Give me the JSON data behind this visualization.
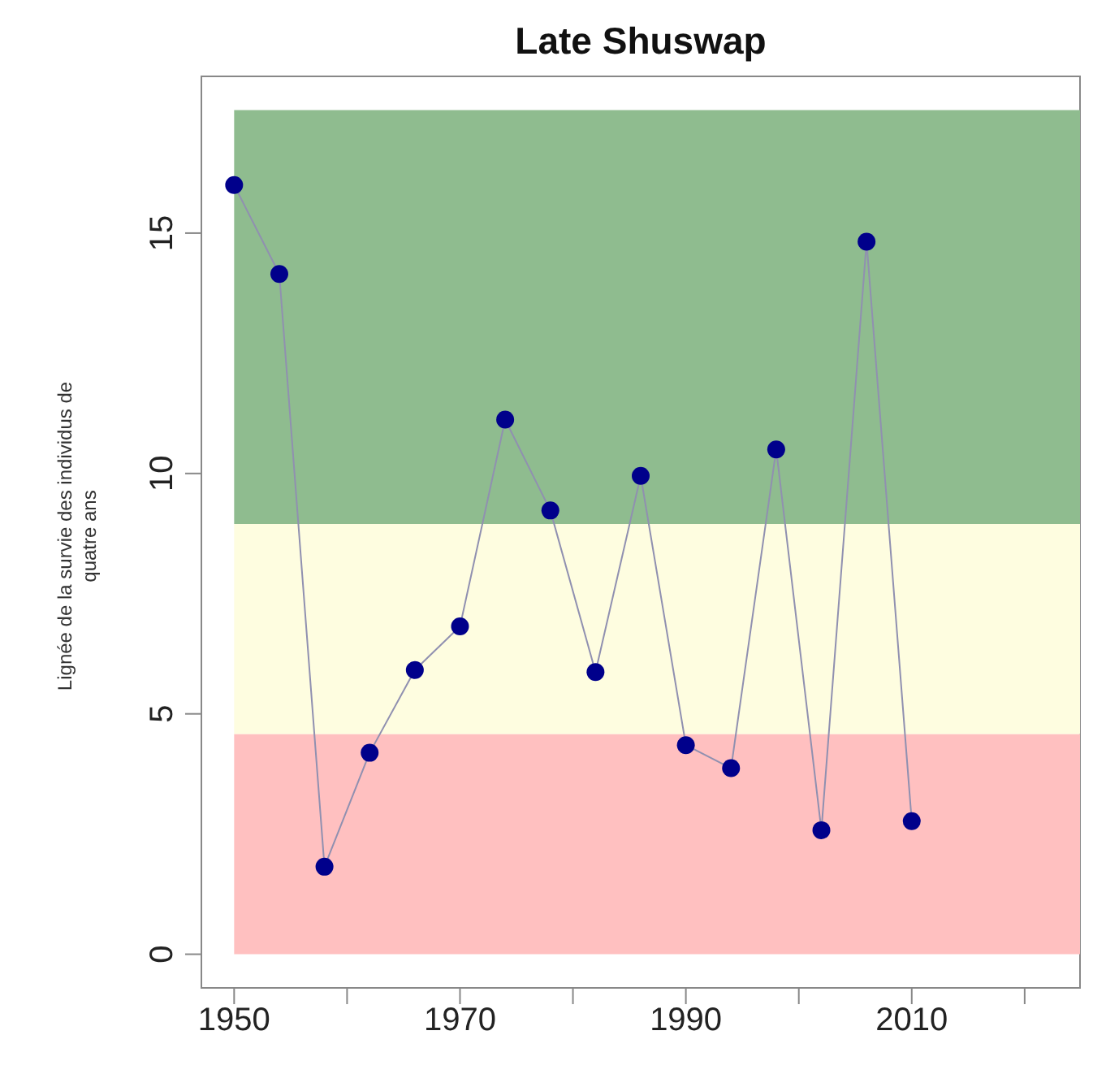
{
  "chart_data": {
    "type": "line",
    "title": "Late Shuswap",
    "ylabel": "Lignée de la survie des individus de quatre ans",
    "x": [
      1950,
      1954,
      1958,
      1962,
      1966,
      1970,
      1974,
      1978,
      1982,
      1986,
      1990,
      1994,
      1998,
      2002,
      2006,
      2010
    ],
    "series": [
      {
        "color": "#00008b",
        "values": [
          16.0,
          14.15,
          1.82,
          4.19,
          5.91,
          6.82,
          11.12,
          9.23,
          5.87,
          9.95,
          4.35,
          3.87,
          10.5,
          2.58,
          14.82,
          2.77
        ]
      }
    ],
    "xlim": [
      1947.1,
      2024.9
    ],
    "ylim": [
      -0.7,
      18.26
    ],
    "xticks": [
      1950,
      {
        "value": 1960,
        "label": null
      },
      1970,
      {
        "value": 1980,
        "label": null
      },
      1990,
      {
        "value": 2000,
        "label": null
      },
      2010,
      {
        "value": 2020,
        "label": null
      }
    ],
    "yticks": [
      0,
      5,
      10,
      15
    ],
    "bands": [
      {
        "axis": "y",
        "from": 0,
        "to": 4.58,
        "color": "#ffc0c0"
      },
      {
        "axis": "y",
        "from": 4.58,
        "to": 8.95,
        "color": "#fefde0"
      },
      {
        "axis": "y",
        "from": 8.95,
        "to": 17.56,
        "color": "#8fbc8f"
      }
    ],
    "marker": "circle",
    "line_style": "solid",
    "grid": false
  }
}
